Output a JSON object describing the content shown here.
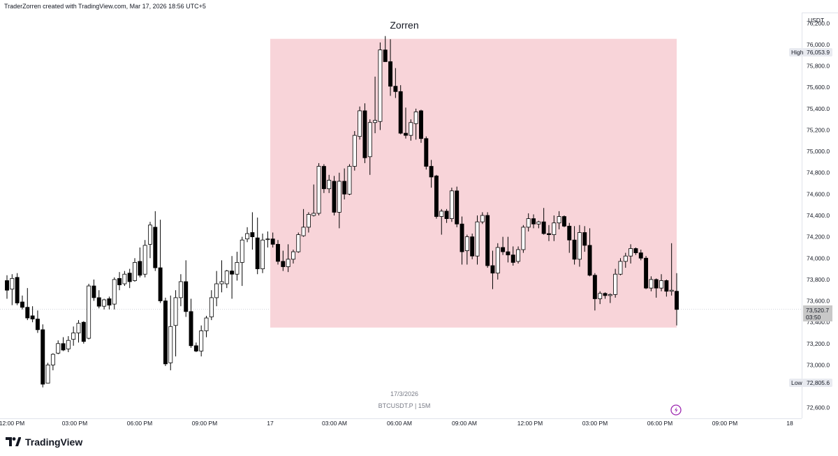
{
  "header": {
    "credit": "TraderZorren created with TradingView.com, Mar 17, 2026 18:56 UTC+5"
  },
  "chart_data": {
    "type": "candlestick",
    "title": "Zorren",
    "symbol_label": "BTCUSDT.P | 15M",
    "date_label": "17/3/2026",
    "currency": "USDT",
    "ylim": [
      72500,
      76300
    ],
    "y_ticks": [
      "76,200.0",
      "76,000.0",
      "75,800.0",
      "75,600.0",
      "75,400.0",
      "75,200.0",
      "75,000.0",
      "74,800.0",
      "74,600.0",
      "74,400.0",
      "74,200.0",
      "74,000.0",
      "73,800.0",
      "73,600.0",
      "73,400.0",
      "73,200.0",
      "73,000.0",
      "72,600.0"
    ],
    "x_ticks": [
      "12:00 PM",
      "03:00 PM",
      "06:00 PM",
      "09:00 PM",
      "17",
      "03:00 AM",
      "06:00 AM",
      "09:00 AM",
      "12:00 PM",
      "03:00 PM",
      "06:00 PM",
      "09:00 PM",
      "18"
    ],
    "high": {
      "label": "High",
      "value": "76,053.9"
    },
    "low": {
      "label": "Low",
      "value": "72,805.6"
    },
    "last": {
      "value": "73,520.7",
      "countdown": "03:50"
    },
    "colors": {
      "up_fill": "#ffffff",
      "down_fill": "#000000",
      "wick": "#000000",
      "zone": "#f8d4d9",
      "high_low_bg": "#e8eaf0"
    },
    "zone": {
      "y_top": 76053.9,
      "y_bottom": 73350
    },
    "candles": [
      [
        73790,
        73840,
        73620,
        73700
      ],
      [
        73710,
        73850,
        73560,
        73810
      ],
      [
        73820,
        73860,
        73560,
        73580
      ],
      [
        73590,
        73650,
        73520,
        73540
      ],
      [
        73540,
        73720,
        73420,
        73440
      ],
      [
        73460,
        73550,
        73400,
        73430
      ],
      [
        73430,
        73510,
        73300,
        73330
      ],
      [
        73330,
        73380,
        72790,
        72820
      ],
      [
        72830,
        73020,
        72830,
        73000
      ],
      [
        73000,
        73110,
        72950,
        73100
      ],
      [
        73110,
        73230,
        73100,
        73200
      ],
      [
        73200,
        73260,
        73130,
        73140
      ],
      [
        73150,
        73270,
        73120,
        73230
      ],
      [
        73240,
        73360,
        73180,
        73300
      ],
      [
        73300,
        73420,
        73210,
        73390
      ],
      [
        73400,
        73410,
        73200,
        73220
      ],
      [
        73250,
        73760,
        73240,
        73740
      ],
      [
        73740,
        73800,
        73600,
        73630
      ],
      [
        73630,
        73700,
        73530,
        73550
      ],
      [
        73550,
        73620,
        73520,
        73610
      ],
      [
        73620,
        73640,
        73520,
        73560
      ],
      [
        73570,
        73820,
        73520,
        73800
      ],
      [
        73810,
        73870,
        73700,
        73750
      ],
      [
        73760,
        73880,
        73740,
        73850
      ],
      [
        73860,
        73900,
        73720,
        73780
      ],
      [
        73790,
        74000,
        73780,
        73960
      ],
      [
        73970,
        74100,
        73820,
        73840
      ],
      [
        73850,
        74170,
        73820,
        74120
      ],
      [
        74130,
        74340,
        74000,
        74310
      ],
      [
        74290,
        74440,
        73880,
        73910
      ],
      [
        73910,
        74360,
        73580,
        73600
      ],
      [
        73600,
        73630,
        72990,
        73010
      ],
      [
        73020,
        73650,
        72950,
        73360
      ],
      [
        73370,
        73700,
        73080,
        73630
      ],
      [
        73630,
        73850,
        73550,
        73780
      ],
      [
        73780,
        73980,
        73450,
        73500
      ],
      [
        73500,
        73620,
        73160,
        73180
      ],
      [
        73180,
        73210,
        73120,
        73130
      ],
      [
        73130,
        73370,
        73080,
        73320
      ],
      [
        73320,
        73460,
        73260,
        73440
      ],
      [
        73450,
        73700,
        73420,
        73630
      ],
      [
        73630,
        73880,
        73550,
        73760
      ],
      [
        73760,
        73980,
        73680,
        73780
      ],
      [
        73760,
        73890,
        73720,
        73880
      ],
      [
        73880,
        74020,
        73620,
        73850
      ],
      [
        73850,
        74060,
        73790,
        73960
      ],
      [
        73960,
        74200,
        73740,
        74170
      ],
      [
        74180,
        74290,
        74150,
        74230
      ],
      [
        74240,
        74430,
        74080,
        74200
      ],
      [
        74190,
        74380,
        73850,
        73900
      ],
      [
        73900,
        74230,
        73860,
        74170
      ],
      [
        74180,
        74250,
        74100,
        74180
      ],
      [
        74180,
        74240,
        74100,
        74130
      ],
      [
        74130,
        74170,
        73940,
        73970
      ],
      [
        73970,
        74070,
        73880,
        73920
      ],
      [
        73920,
        74130,
        73870,
        73990
      ],
      [
        73990,
        74080,
        73950,
        74060
      ],
      [
        74060,
        74240,
        74050,
        74220
      ],
      [
        74210,
        74460,
        74200,
        74290
      ],
      [
        74290,
        74430,
        74240,
        74410
      ],
      [
        74400,
        74690,
        74390,
        74420
      ],
      [
        74420,
        74890,
        74400,
        74860
      ],
      [
        74860,
        74880,
        74610,
        74650
      ],
      [
        74650,
        74780,
        74610,
        74730
      ],
      [
        74720,
        74770,
        74400,
        74430
      ],
      [
        74430,
        74800,
        74280,
        74720
      ],
      [
        74720,
        74840,
        74550,
        74600
      ],
      [
        74600,
        74880,
        74590,
        74860
      ],
      [
        74860,
        75190,
        74820,
        75150
      ],
      [
        75140,
        75420,
        75110,
        75380
      ],
      [
        75380,
        75450,
        74890,
        74940
      ],
      [
        74950,
        75300,
        74780,
        75270
      ],
      [
        75270,
        75700,
        75170,
        75290
      ],
      [
        75280,
        76020,
        75200,
        75950
      ],
      [
        75950,
        76080,
        75850,
        75840
      ],
      [
        75840,
        76050,
        75520,
        75610
      ],
      [
        75610,
        75780,
        75500,
        75560
      ],
      [
        75560,
        75620,
        75160,
        75170
      ],
      [
        75170,
        75410,
        75120,
        75150
      ],
      [
        75150,
        75300,
        75100,
        75270
      ],
      [
        75260,
        75400,
        75110,
        75370
      ],
      [
        75380,
        75390,
        75080,
        75120
      ],
      [
        75120,
        75140,
        74830,
        74860
      ],
      [
        74860,
        74920,
        74660,
        74760
      ],
      [
        74770,
        74780,
        74370,
        74390
      ],
      [
        74390,
        74460,
        74220,
        74440
      ],
      [
        74440,
        74460,
        74330,
        74370
      ],
      [
        74370,
        74660,
        74340,
        74630
      ],
      [
        74630,
        74670,
        74290,
        74320
      ],
      [
        74320,
        74390,
        73940,
        74060
      ],
      [
        74070,
        74220,
        73940,
        74200
      ],
      [
        74200,
        74230,
        73990,
        74020
      ],
      [
        74020,
        74400,
        73940,
        74340
      ],
      [
        74340,
        74430,
        74320,
        74400
      ],
      [
        74400,
        74430,
        73910,
        73930
      ],
      [
        73930,
        74070,
        73710,
        73860
      ],
      [
        73860,
        74140,
        73800,
        74100
      ],
      [
        74100,
        74200,
        74030,
        74060
      ],
      [
        74060,
        74200,
        73960,
        74030
      ],
      [
        74030,
        74110,
        73930,
        73960
      ],
      [
        73970,
        74110,
        73950,
        74080
      ],
      [
        74080,
        74310,
        74050,
        74290
      ],
      [
        74290,
        74420,
        74250,
        74370
      ],
      [
        74370,
        74410,
        74280,
        74320
      ],
      [
        74320,
        74350,
        74280,
        74340
      ],
      [
        74340,
        74470,
        74220,
        74230
      ],
      [
        74230,
        74310,
        74160,
        74220
      ],
      [
        74220,
        74400,
        74160,
        74330
      ],
      [
        74330,
        74440,
        74270,
        74390
      ],
      [
        74390,
        74400,
        74290,
        74300
      ],
      [
        74300,
        74330,
        74050,
        74170
      ],
      [
        74170,
        74300,
        73940,
        73990
      ],
      [
        73990,
        74310,
        73920,
        74240
      ],
      [
        74240,
        74300,
        74060,
        74120
      ],
      [
        74120,
        74280,
        73830,
        73840
      ],
      [
        73840,
        73860,
        73510,
        73620
      ],
      [
        73620,
        73690,
        73570,
        73670
      ],
      [
        73670,
        73680,
        73620,
        73650
      ],
      [
        73650,
        73670,
        73580,
        73660
      ],
      [
        73660,
        73900,
        73630,
        73850
      ],
      [
        73850,
        74000,
        73840,
        73970
      ],
      [
        73970,
        74050,
        73910,
        74020
      ],
      [
        74020,
        74130,
        73950,
        74090
      ],
      [
        74090,
        74100,
        74030,
        74050
      ],
      [
        74050,
        74080,
        73980,
        74000
      ],
      [
        74000,
        74020,
        73710,
        73720
      ],
      [
        73720,
        73830,
        73690,
        73800
      ],
      [
        73800,
        73810,
        73630,
        73720
      ],
      [
        73720,
        73850,
        73690,
        73790
      ],
      [
        73790,
        73800,
        73640,
        73690
      ],
      [
        73690,
        74140,
        73650,
        73700
      ],
      [
        73690,
        73860,
        73370,
        73520
      ]
    ]
  },
  "watermark": {
    "brand": "TradingView"
  }
}
